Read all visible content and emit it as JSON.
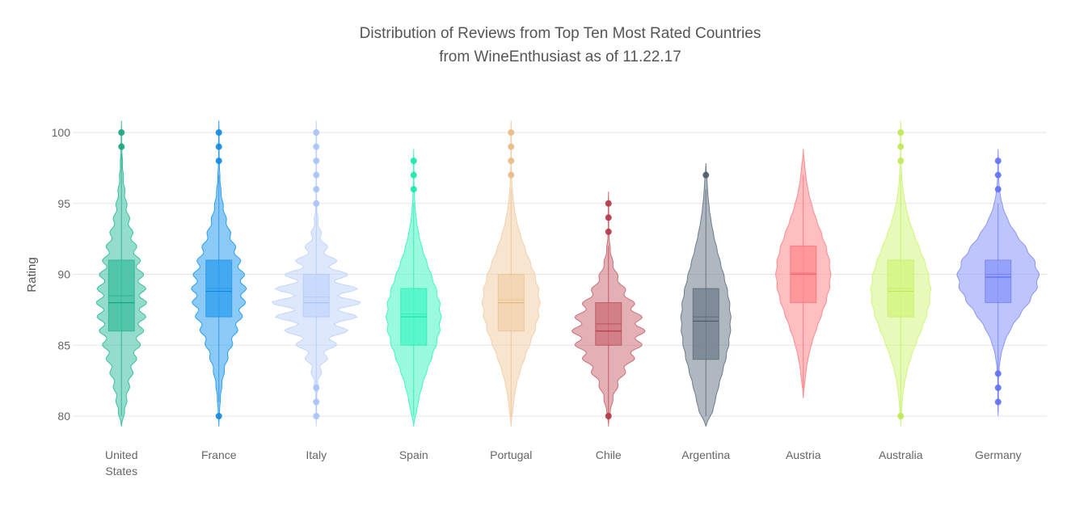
{
  "chart_data": {
    "type": "violin",
    "title": "Distribution of Reviews from Top Ten Most Rated Countries",
    "subtitle": "from WineEnthusiast as of 11.22.17",
    "ylabel": "Rating",
    "xlabel": "",
    "ylim": [
      79,
      101.5
    ],
    "yticks": [
      80,
      85,
      90,
      95,
      100
    ],
    "grid": true,
    "series": [
      {
        "category": [
          "United",
          "States"
        ],
        "color": "#3cbfa0",
        "dark": "#1ba37f",
        "min": 80,
        "max": 100,
        "q1": 86,
        "median": 88,
        "mean": 88.5,
        "q3": 91,
        "whisker_low": 80,
        "whisker_high": 98.5,
        "outliers": [
          99,
          100
        ],
        "width": 0.5,
        "wiggle": 0.18
      },
      {
        "category": [
          "France"
        ],
        "color": "#2b9ff0",
        "dark": "#1188e0",
        "min": 80,
        "max": 100,
        "q1": 87,
        "median": 88.8,
        "mean": 89,
        "q3": 91,
        "whisker_low": 81,
        "whisker_high": 97,
        "outliers": [
          80,
          98,
          99,
          100
        ],
        "width": 0.55,
        "wiggle": 0.12
      },
      {
        "category": [
          "Italy"
        ],
        "color": "#c3d6fb",
        "dark": "#a9c2f7",
        "min": 80,
        "max": 100,
        "q1": 87,
        "median": 88,
        "mean": 88.4,
        "q3": 90,
        "whisker_low": 80,
        "whisker_high": 95,
        "outliers": [
          80,
          81,
          82,
          95,
          96,
          97,
          98,
          99,
          100
        ],
        "width": 0.88,
        "wiggle": 0.35
      },
      {
        "category": [
          "Spain"
        ],
        "color": "#45f5c4",
        "dark": "#19e6a8",
        "min": 80,
        "max": 98,
        "q1": 85,
        "median": 87,
        "mean": 87.2,
        "q3": 89,
        "whisker_low": 80,
        "whisker_high": 95,
        "outliers": [
          96,
          97,
          98
        ],
        "width": 0.55,
        "wiggle": 0.03
      },
      {
        "category": [
          "Portugal"
        ],
        "color": "#f2d0aa",
        "dark": "#e8b985",
        "min": 80,
        "max": 100,
        "q1": 86,
        "median": 88,
        "mean": 88.2,
        "q3": 90,
        "whisker_low": 80,
        "whisker_high": 96,
        "outliers": [
          97,
          98,
          99,
          100
        ],
        "width": 0.58,
        "wiggle": 0.03
      },
      {
        "category": [
          "Chile"
        ],
        "color": "#cc6f78",
        "dark": "#b23645",
        "min": 80,
        "max": 95,
        "q1": 85,
        "median": 86,
        "mean": 86.5,
        "q3": 88,
        "whisker_low": 80,
        "whisker_high": 92,
        "outliers": [
          80,
          93,
          94,
          95
        ],
        "width": 0.73,
        "wiggle": 0.15
      },
      {
        "category": [
          "Argentina"
        ],
        "color": "#6e7c8c",
        "dark": "#4e5a68",
        "min": 80,
        "max": 97,
        "q1": 84,
        "median": 86.7,
        "mean": 87,
        "q3": 89,
        "whisker_low": 80,
        "whisker_high": 96,
        "outliers": [
          97
        ],
        "width": 0.5,
        "wiggle": 0.02
      },
      {
        "category": [
          "Austria"
        ],
        "color": "#ff8a8e",
        "dark": "#f2646b",
        "min": 82,
        "max": 98,
        "q1": 88,
        "median": 90,
        "mean": 90.1,
        "q3": 92,
        "whisker_low": 82,
        "whisker_high": 97,
        "outliers": [],
        "width": 0.55,
        "wiggle": 0.02
      },
      {
        "category": [
          "Australia"
        ],
        "color": "#d2f57f",
        "dark": "#bfe855",
        "min": 80,
        "max": 100,
        "q1": 87,
        "median": 88.8,
        "mean": 89,
        "q3": 91,
        "whisker_low": 80,
        "whisker_high": 97,
        "outliers": [
          80,
          98,
          99,
          100
        ],
        "width": 0.6,
        "wiggle": 0.02
      },
      {
        "category": [
          "Germany"
        ],
        "color": "#8896f9",
        "dark": "#6070f2",
        "min": 81,
        "max": 98,
        "q1": 88,
        "median": 89.8,
        "mean": 90,
        "q3": 91,
        "whisker_low": 80,
        "whisker_high": 95,
        "outliers": [
          81,
          82,
          83,
          96,
          97,
          98
        ],
        "width": 0.82,
        "wiggle": 0.03
      }
    ]
  }
}
